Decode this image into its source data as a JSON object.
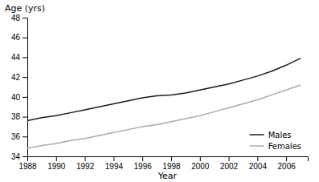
{
  "chart_data": {
    "type": "line",
    "x": [
      1988,
      1989,
      1990,
      1991,
      1992,
      1993,
      1994,
      1995,
      1996,
      1997,
      1998,
      1999,
      2000,
      2001,
      2002,
      2003,
      2004,
      2005,
      2006,
      2007
    ],
    "series": [
      {
        "name": "Males",
        "color": "#1a1a1a",
        "values": [
          37.6,
          37.9,
          38.1,
          38.4,
          38.7,
          39.0,
          39.3,
          39.6,
          39.9,
          40.1,
          40.2,
          40.4,
          40.7,
          41.0,
          41.3,
          41.7,
          42.1,
          42.6,
          43.2,
          43.9
        ]
      },
      {
        "name": "Females",
        "color": "#aaaaaa",
        "values": [
          34.8,
          35.1,
          35.3,
          35.6,
          35.8,
          36.1,
          36.4,
          36.7,
          37.0,
          37.2,
          37.5,
          37.8,
          38.1,
          38.5,
          38.9,
          39.3,
          39.7,
          40.2,
          40.7,
          41.2
        ]
      }
    ],
    "xlabel": "Year",
    "ylabel": "Age (yrs)",
    "xlim": [
      1988,
      2007.5
    ],
    "ylim": [
      34,
      48
    ],
    "xticks": [
      1988,
      1990,
      1992,
      1994,
      1996,
      1998,
      2000,
      2002,
      2004,
      2006
    ],
    "yticks": [
      34,
      36,
      38,
      40,
      42,
      44,
      46,
      48
    ],
    "grid": false,
    "legend": "lower right"
  }
}
